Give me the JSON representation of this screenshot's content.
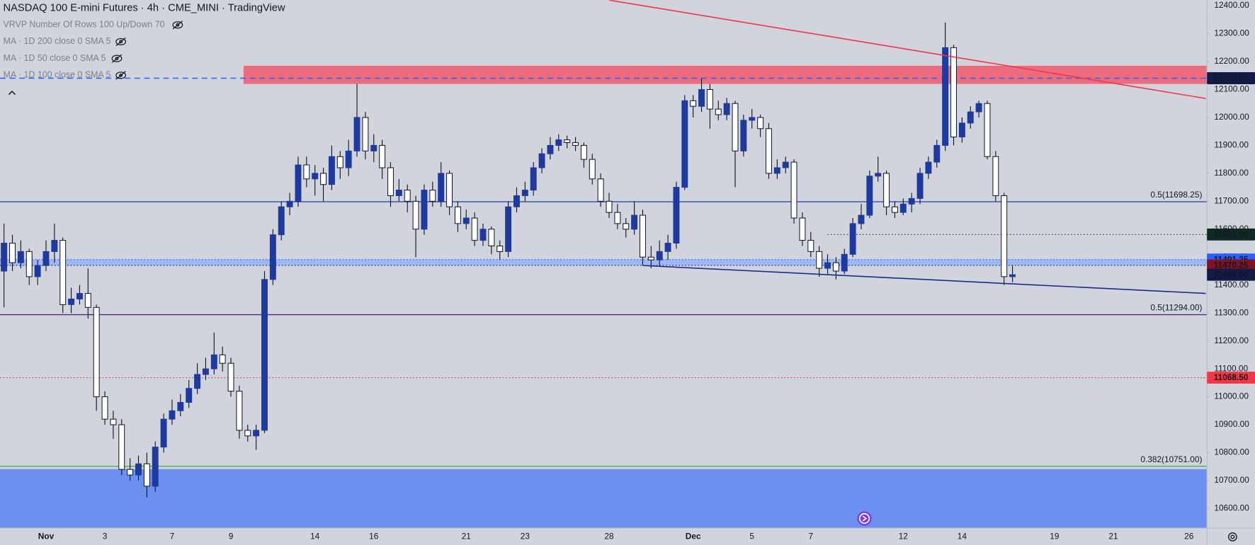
{
  "chart_data": {
    "type": "candlestick",
    "title": "NASDAQ 100 E-mini Futures · 4h · CME_MINI · TradingView",
    "indicators": [
      "VRVP Number Of Rows 100 Up/Down 70",
      "MA · 1D 200 close 0 SMA 5",
      "MA · 1D 50 close 0 SMA 5",
      "MA · 1D 100 close 0 SMA 5"
    ],
    "up_color": "#1f3a9e",
    "down_color": "#ffffff",
    "wick_color": "#131722",
    "grid": false,
    "ylim": [
      10530,
      12420
    ],
    "yticks": [
      {
        "value": 12400,
        "label": "12400.00"
      },
      {
        "value": 12300,
        "label": "12300.00"
      },
      {
        "value": 12200,
        "label": "12200.00"
      },
      {
        "value": 12100,
        "label": "12100.00"
      },
      {
        "value": 12000,
        "label": "12000.00"
      },
      {
        "value": 11900,
        "label": "11900.00"
      },
      {
        "value": 11800,
        "label": "11800.00"
      },
      {
        "value": 11700,
        "label": "11700.00"
      },
      {
        "value": 11600,
        "label": "11600.00"
      },
      {
        "value": 11500,
        "label": "11500.00"
      },
      {
        "value": 11400,
        "label": "11400.00"
      },
      {
        "value": 11300,
        "label": "11300.00"
      },
      {
        "value": 11200,
        "label": "11200.00"
      },
      {
        "value": 11100,
        "label": "11100.00"
      },
      {
        "value": 11000,
        "label": "11000.00"
      },
      {
        "value": 10900,
        "label": "10900.00"
      },
      {
        "value": 10800,
        "label": "10800.00"
      },
      {
        "value": 10700,
        "label": "10700.00"
      },
      {
        "value": 10600,
        "label": "10600.00"
      }
    ],
    "categories": [
      null,
      null,
      null,
      null,
      null,
      "Nov",
      null,
      null,
      null,
      null,
      null,
      null,
      "3",
      null,
      null,
      null,
      null,
      null,
      null,
      null,
      "7",
      null,
      null,
      null,
      null,
      null,
      null,
      "9",
      null,
      null,
      null,
      null,
      null,
      null,
      null,
      null,
      null,
      "14",
      null,
      null,
      null,
      null,
      null,
      null,
      "16",
      null,
      null,
      null,
      null,
      null,
      null,
      null,
      null,
      null,
      null,
      "21",
      null,
      null,
      null,
      null,
      null,
      null,
      "23",
      null,
      null,
      null,
      null,
      null,
      null,
      null,
      null,
      null,
      "28",
      null,
      null,
      null,
      null,
      null,
      null,
      null,
      null,
      null,
      "Dec",
      null,
      null,
      null,
      null,
      null,
      null,
      "5",
      null,
      null,
      null,
      null,
      null,
      null,
      "7",
      null,
      null,
      null,
      null,
      null,
      null,
      null,
      null,
      null,
      null,
      "12",
      null,
      null,
      null,
      null,
      null,
      null,
      "14",
      null,
      null,
      null,
      null,
      null,
      null,
      null,
      null,
      null,
      null,
      "19",
      null,
      null,
      null,
      null,
      null,
      null,
      "21",
      null,
      null,
      null,
      null,
      null,
      null,
      null,
      null,
      "26",
      null,
      null
    ],
    "candles": [
      [
        11450,
        11620,
        11320,
        11550
      ],
      [
        11550,
        11580,
        11450,
        11480
      ],
      [
        11480,
        11560,
        11460,
        11520
      ],
      [
        11520,
        11530,
        11400,
        11430
      ],
      [
        11430,
        11490,
        11400,
        11470
      ],
      [
        11470,
        11560,
        11450,
        11520
      ],
      [
        11520,
        11620,
        11480,
        11560
      ],
      [
        11560,
        11570,
        11300,
        11330
      ],
      [
        11330,
        11390,
        11300,
        11350
      ],
      [
        11350,
        11400,
        11330,
        11370
      ],
      [
        11370,
        11460,
        11280,
        11320
      ],
      [
        11320,
        11330,
        10950,
        11000
      ],
      [
        11000,
        11020,
        10900,
        10920
      ],
      [
        10920,
        10950,
        10850,
        10900
      ],
      [
        10900,
        10920,
        10720,
        10740
      ],
      [
        10740,
        10780,
        10700,
        10720
      ],
      [
        10720,
        10790,
        10700,
        10760
      ],
      [
        10760,
        10800,
        10640,
        10680
      ],
      [
        10680,
        10840,
        10660,
        10820
      ],
      [
        10820,
        10940,
        10800,
        10920
      ],
      [
        10920,
        10990,
        10900,
        10950
      ],
      [
        10950,
        11010,
        10930,
        10980
      ],
      [
        10980,
        11060,
        10960,
        11030
      ],
      [
        11030,
        11120,
        11010,
        11080
      ],
      [
        11080,
        11140,
        11060,
        11100
      ],
      [
        11100,
        11230,
        11080,
        11150
      ],
      [
        11150,
        11180,
        11090,
        11120
      ],
      [
        11120,
        11140,
        11000,
        11020
      ],
      [
        11020,
        11040,
        10850,
        10880
      ],
      [
        10880,
        10900,
        10840,
        10860
      ],
      [
        10860,
        10900,
        10810,
        10880
      ],
      [
        10880,
        11450,
        10870,
        11420
      ],
      [
        11420,
        11600,
        11400,
        11580
      ],
      [
        11580,
        11700,
        11560,
        11680
      ],
      [
        11680,
        11730,
        11650,
        11700
      ],
      [
        11700,
        11860,
        11680,
        11830
      ],
      [
        11830,
        11860,
        11750,
        11780
      ],
      [
        11780,
        11830,
        11720,
        11800
      ],
      [
        11800,
        11820,
        11700,
        11760
      ],
      [
        11760,
        11900,
        11740,
        11860
      ],
      [
        11860,
        11880,
        11780,
        11820
      ],
      [
        11820,
        11920,
        11790,
        11880
      ],
      [
        11880,
        12120,
        11860,
        12000
      ],
      [
        12000,
        12020,
        11850,
        11880
      ],
      [
        11880,
        11940,
        11840,
        11900
      ],
      [
        11900,
        11920,
        11780,
        11820
      ],
      [
        11820,
        11840,
        11680,
        11720
      ],
      [
        11720,
        11780,
        11700,
        11740
      ],
      [
        11740,
        11760,
        11660,
        11700
      ],
      [
        11700,
        11720,
        11500,
        11600
      ],
      [
        11600,
        11760,
        11580,
        11740
      ],
      [
        11740,
        11770,
        11680,
        11700
      ],
      [
        11700,
        11840,
        11680,
        11800
      ],
      [
        11800,
        11810,
        11650,
        11680
      ],
      [
        11680,
        11700,
        11590,
        11620
      ],
      [
        11620,
        11670,
        11600,
        11640
      ],
      [
        11640,
        11660,
        11540,
        11560
      ],
      [
        11560,
        11620,
        11540,
        11600
      ],
      [
        11600,
        11610,
        11510,
        11540
      ],
      [
        11540,
        11560,
        11490,
        11520
      ],
      [
        11520,
        11700,
        11500,
        11680
      ],
      [
        11680,
        11750,
        11660,
        11720
      ],
      [
        11720,
        11770,
        11700,
        11740
      ],
      [
        11740,
        11840,
        11720,
        11820
      ],
      [
        11820,
        11890,
        11800,
        11870
      ],
      [
        11870,
        11930,
        11850,
        11900
      ],
      [
        11900,
        11940,
        11880,
        11920
      ],
      [
        11920,
        11935,
        11890,
        11910
      ],
      [
        11910,
        11930,
        11880,
        11900
      ],
      [
        11900,
        11910,
        11820,
        11850
      ],
      [
        11850,
        11870,
        11760,
        11780
      ],
      [
        11780,
        11800,
        11680,
        11700
      ],
      [
        11700,
        11730,
        11640,
        11660
      ],
      [
        11660,
        11690,
        11600,
        11620
      ],
      [
        11620,
        11640,
        11570,
        11600
      ],
      [
        11600,
        11700,
        11580,
        11650
      ],
      [
        11650,
        11670,
        11470,
        11500
      ],
      [
        11500,
        11540,
        11460,
        11490
      ],
      [
        11490,
        11560,
        11470,
        11520
      ],
      [
        11520,
        11580,
        11490,
        11550
      ],
      [
        11550,
        11770,
        11530,
        11750
      ],
      [
        11750,
        12080,
        11740,
        12060
      ],
      [
        12060,
        12080,
        12000,
        12040
      ],
      [
        12040,
        12140,
        12020,
        12100
      ],
      [
        12100,
        12120,
        11960,
        12030
      ],
      [
        12030,
        12060,
        11990,
        12010
      ],
      [
        12010,
        12070,
        11990,
        12050
      ],
      [
        12050,
        12060,
        11750,
        11880
      ],
      [
        11880,
        12010,
        11860,
        11990
      ],
      [
        11990,
        12030,
        11960,
        12000
      ],
      [
        12000,
        12010,
        11930,
        11960
      ],
      [
        11960,
        11980,
        11780,
        11800
      ],
      [
        11800,
        11850,
        11780,
        11820
      ],
      [
        11820,
        11860,
        11800,
        11840
      ],
      [
        11840,
        11850,
        11620,
        11640
      ],
      [
        11640,
        11660,
        11540,
        11560
      ],
      [
        11560,
        11590,
        11500,
        11520
      ],
      [
        11520,
        11540,
        11430,
        11460
      ],
      [
        11460,
        11510,
        11440,
        11480
      ],
      [
        11480,
        11500,
        11420,
        11450
      ],
      [
        11450,
        11530,
        11440,
        11510
      ],
      [
        11510,
        11640,
        11500,
        11620
      ],
      [
        11620,
        11690,
        11600,
        11650
      ],
      [
        11650,
        11810,
        11640,
        11790
      ],
      [
        11790,
        11860,
        11770,
        11800
      ],
      [
        11800,
        11810,
        11650,
        11680
      ],
      [
        11680,
        11700,
        11640,
        11660
      ],
      [
        11660,
        11710,
        11650,
        11690
      ],
      [
        11690,
        11730,
        11660,
        11710
      ],
      [
        11710,
        11820,
        11690,
        11800
      ],
      [
        11800,
        11860,
        11780,
        11840
      ],
      [
        11840,
        11920,
        11820,
        11900
      ],
      [
        11900,
        12340,
        11880,
        12250
      ],
      [
        12250,
        12260,
        11900,
        11930
      ],
      [
        11930,
        12000,
        11910,
        11980
      ],
      [
        11980,
        12040,
        11960,
        12020
      ],
      [
        12020,
        12060,
        12000,
        12050
      ],
      [
        12050,
        12060,
        11850,
        11860
      ],
      [
        11860,
        11880,
        11700,
        11720
      ],
      [
        11720,
        11730,
        11400,
        11430
      ],
      [
        11430,
        11470,
        11410,
        11437
      ]
    ],
    "zones": [
      {
        "from": 12120,
        "to": 12185,
        "color": "#ec6b7c",
        "start": 29
      },
      {
        "from": 11470.25,
        "to": 11491.25,
        "color": "#9db7f7",
        "start": 0
      },
      {
        "from": 10500,
        "to": 10741,
        "color": "#6d8ff0",
        "start": 0
      }
    ],
    "price_lines": [
      {
        "value": 12140.5,
        "label": "12140.50",
        "color": "#131a45",
        "line_color": "#2962ff",
        "style": "dashed",
        "start": 0
      },
      {
        "value": 11581,
        "label": "11581.00",
        "color": "#0f2a22",
        "line_color": "#3a3e4a",
        "style": "dotted",
        "start": 98
      },
      {
        "value": 11491.25,
        "label": "11491.25",
        "color": "#2962ff",
        "line_color": "#2962ff",
        "style": "dotted",
        "start": 0
      },
      {
        "value": 11470.25,
        "label": "11470.25",
        "color": "#7f1420",
        "line_color": "#2a2e39",
        "style": "dotted",
        "start": 0
      },
      {
        "value": 11437,
        "label": "11437.00",
        "color": "#131a45",
        "line_color": "none",
        "style": "none",
        "start": 0
      },
      {
        "value": 11068.5,
        "label": "11068.50",
        "color": "#f23645",
        "line_color": "#f23645",
        "style": "dotted",
        "start": 0
      }
    ],
    "levels": [
      {
        "value": 11698.25,
        "label": "0.5(11698.25)",
        "color": "#2d47b5"
      },
      {
        "value": 11294,
        "label": "0.5(11294.00)",
        "color": "#4b2a8a"
      },
      {
        "value": 10751,
        "label": "0.382(10751.00)",
        "color": "#4caf50"
      }
    ],
    "trendlines": [
      {
        "points": [
          [
            72,
            12420
          ],
          [
            143,
            12068
          ]
        ],
        "color": "#f23645"
      },
      {
        "points": [
          [
            76,
            11470
          ],
          [
            143,
            11370
          ]
        ],
        "color": "#1a2a8c"
      }
    ]
  }
}
